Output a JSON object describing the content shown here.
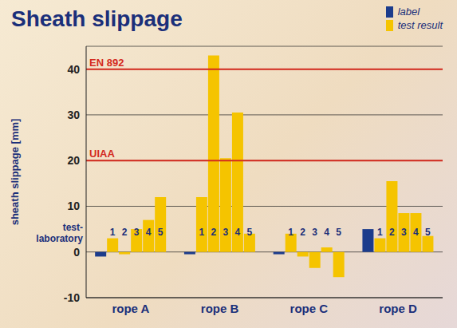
{
  "chart_data": {
    "type": "bar",
    "title": "Sheath slippage",
    "y_label": "sheath slippage [mm]",
    "categories": [
      "rope A",
      "rope B",
      "rope C",
      "rope D"
    ],
    "group_label": "test-laboratory",
    "laboratories": [
      "1",
      "2",
      "3",
      "4",
      "5"
    ],
    "series": [
      {
        "name": "label",
        "color": "#1c3c8c",
        "values": [
          -1,
          -0.5,
          -0.5,
          5
        ]
      },
      {
        "name": "test result",
        "color": "#f5c400",
        "values": [
          [
            3,
            -0.5,
            5,
            7,
            12
          ],
          [
            12,
            43,
            20.5,
            30.5,
            4
          ],
          [
            4,
            -1,
            -3.5,
            1,
            -5.5
          ],
          [
            3,
            15.5,
            8.5,
            8.5,
            3.5
          ]
        ]
      }
    ],
    "reference_lines": [
      {
        "label": "EN 892",
        "value": 40,
        "color": "#d42a1e"
      },
      {
        "label": "UIAA",
        "value": 20,
        "color": "#d42a1e"
      }
    ],
    "ylim": [
      -10,
      45
    ],
    "yticks": [
      -10,
      0,
      10,
      20,
      30,
      40
    ],
    "grid": true,
    "legend": "top-right"
  }
}
